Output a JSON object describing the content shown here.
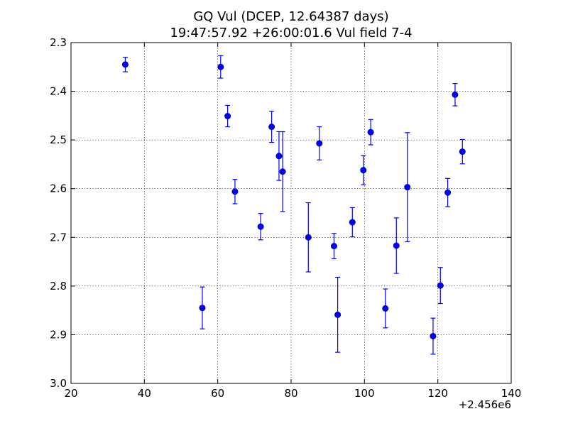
{
  "chart_data": {
    "type": "scatter",
    "title": "GQ Vul (DCEP, 12.64387 days)",
    "subtitle": "19:47:57.92 +26:00:01.6 Vul field 7-4",
    "xlabel": "",
    "ylabel": "",
    "x_offset_label": "+2.456e6",
    "xlim": [
      20,
      140
    ],
    "ylim": [
      2.3,
      3.0
    ],
    "y_inverted": true,
    "grid": true,
    "x_ticks": [
      "20",
      "40",
      "60",
      "80",
      "100",
      "120",
      "140"
    ],
    "y_ticks": [
      "2.3",
      "2.4",
      "2.5",
      "2.6",
      "2.7",
      "2.8",
      "2.9",
      "3.0"
    ],
    "marker_color": "#0000ff",
    "points": [
      {
        "x": 34.8,
        "y": 2.345,
        "err": 0.015
      },
      {
        "x": 55.8,
        "y": 2.845,
        "err": 0.043
      },
      {
        "x": 60.8,
        "y": 2.35,
        "err": 0.023
      },
      {
        "x": 62.7,
        "y": 2.451,
        "err": 0.022
      },
      {
        "x": 64.7,
        "y": 2.606,
        "err": 0.025
      },
      {
        "x": 71.7,
        "y": 2.678,
        "err": 0.027
      },
      {
        "x": 74.7,
        "y": 2.473,
        "err": 0.032
      },
      {
        "x": 76.7,
        "y": 2.533,
        "err": 0.05
      },
      {
        "x": 77.7,
        "y": 2.565,
        "err": 0.082
      },
      {
        "x": 84.7,
        "y": 2.7,
        "err": 0.071
      },
      {
        "x": 87.7,
        "y": 2.507,
        "err": 0.034
      },
      {
        "x": 91.7,
        "y": 2.718,
        "err": 0.026
      },
      {
        "x": 92.7,
        "y": 2.859,
        "err": 0.077
      },
      {
        "x": 96.7,
        "y": 2.669,
        "err": 0.03
      },
      {
        "x": 99.7,
        "y": 2.562,
        "err": 0.03
      },
      {
        "x": 101.7,
        "y": 2.484,
        "err": 0.026
      },
      {
        "x": 105.7,
        "y": 2.846,
        "err": 0.04
      },
      {
        "x": 108.7,
        "y": 2.717,
        "err": 0.057
      },
      {
        "x": 111.7,
        "y": 2.597,
        "err": 0.112
      },
      {
        "x": 118.7,
        "y": 2.903,
        "err": 0.037
      },
      {
        "x": 120.7,
        "y": 2.799,
        "err": 0.037
      },
      {
        "x": 122.7,
        "y": 2.608,
        "err": 0.029
      },
      {
        "x": 124.7,
        "y": 2.407,
        "err": 0.023
      },
      {
        "x": 126.7,
        "y": 2.524,
        "err": 0.025
      }
    ]
  }
}
